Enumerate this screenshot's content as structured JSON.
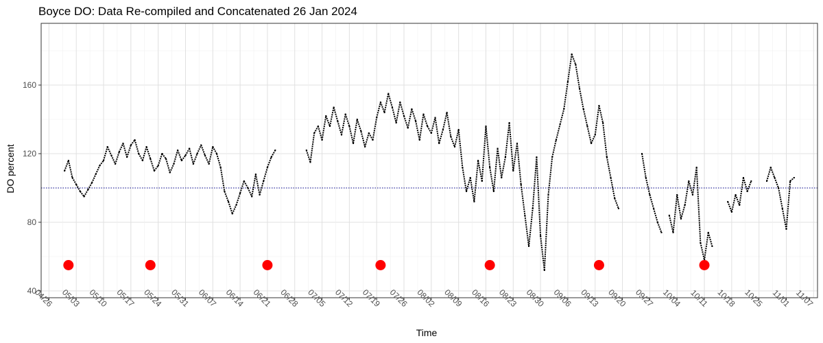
{
  "chart_data": {
    "type": "scatter",
    "title": "Boyce DO: Data Re-compiled and Concatenated 26 Jan 2024",
    "xlabel": "Time",
    "ylabel": "DO percent",
    "ylim": [
      36,
      196
    ],
    "y_ticks": [
      40,
      80,
      120,
      160
    ],
    "x_start": "2024-04-24",
    "x_end": "2024-11-09",
    "x_ticks": [
      {
        "date": "2024-04-26",
        "label": "04/26"
      },
      {
        "date": "2024-05-03",
        "label": "05/03"
      },
      {
        "date": "2024-05-10",
        "label": "05/10"
      },
      {
        "date": "2024-05-17",
        "label": "05/17"
      },
      {
        "date": "2024-05-24",
        "label": "05/24"
      },
      {
        "date": "2024-05-31",
        "label": "05/31"
      },
      {
        "date": "2024-06-07",
        "label": "06/07"
      },
      {
        "date": "2024-06-14",
        "label": "06/14"
      },
      {
        "date": "2024-06-21",
        "label": "06/21"
      },
      {
        "date": "2024-06-28",
        "label": "06/28"
      },
      {
        "date": "2024-07-05",
        "label": "07/05"
      },
      {
        "date": "2024-07-12",
        "label": "07/12"
      },
      {
        "date": "2024-07-19",
        "label": "07/19"
      },
      {
        "date": "2024-07-26",
        "label": "07/26"
      },
      {
        "date": "2024-08-02",
        "label": "08/02"
      },
      {
        "date": "2024-08-09",
        "label": "08/09"
      },
      {
        "date": "2024-08-16",
        "label": "08/16"
      },
      {
        "date": "2024-08-23",
        "label": "08/23"
      },
      {
        "date": "2024-08-30",
        "label": "08/30"
      },
      {
        "date": "2024-09-06",
        "label": "09/06"
      },
      {
        "date": "2024-09-13",
        "label": "09/13"
      },
      {
        "date": "2024-09-20",
        "label": "09/20"
      },
      {
        "date": "2024-09-27",
        "label": "09/27"
      },
      {
        "date": "2024-10-04",
        "label": "10/04"
      },
      {
        "date": "2024-10-11",
        "label": "10/11"
      },
      {
        "date": "2024-10-18",
        "label": "10/18"
      },
      {
        "date": "2024-10-25",
        "label": "10/25"
      },
      {
        "date": "2024-11-01",
        "label": "11/01"
      },
      {
        "date": "2024-11-07",
        "label": "11/07"
      }
    ],
    "reference_line": {
      "y": 100,
      "color": "#00008b",
      "style": "dotted"
    },
    "grid": true,
    "legend": "none",
    "series": [
      {
        "color": "#000000",
        "points": [
          [
            "2024-04-30",
            110
          ],
          [
            "2024-05-01",
            116
          ],
          [
            "2024-05-02",
            106
          ],
          [
            "2024-05-03",
            102
          ],
          [
            "2024-05-04",
            98
          ],
          [
            "2024-05-05",
            95
          ],
          [
            "2024-05-06",
            99
          ],
          [
            "2024-05-07",
            103
          ],
          [
            "2024-05-08",
            108
          ],
          [
            "2024-05-09",
            113
          ],
          [
            "2024-05-10",
            116
          ],
          [
            "2024-05-11",
            124
          ],
          [
            "2024-05-12",
            119
          ],
          [
            "2024-05-13",
            114
          ],
          [
            "2024-05-14",
            121
          ],
          [
            "2024-05-15",
            126
          ],
          [
            "2024-05-16",
            118
          ],
          [
            "2024-05-17",
            125
          ],
          [
            "2024-05-18",
            128
          ],
          [
            "2024-05-19",
            120
          ],
          [
            "2024-05-20",
            116
          ],
          [
            "2024-05-21",
            124
          ],
          [
            "2024-05-22",
            117
          ],
          [
            "2024-05-23",
            110
          ],
          [
            "2024-05-24",
            113
          ],
          [
            "2024-05-25",
            120
          ],
          [
            "2024-05-26",
            117
          ],
          [
            "2024-05-27",
            109
          ],
          [
            "2024-05-28",
            114
          ],
          [
            "2024-05-29",
            122
          ],
          [
            "2024-05-30",
            116
          ],
          [
            "2024-05-31",
            119
          ],
          [
            "2024-06-01",
            123
          ],
          [
            "2024-06-02",
            114
          ],
          [
            "2024-06-03",
            120
          ],
          [
            "2024-06-04",
            125
          ],
          [
            "2024-06-05",
            119
          ],
          [
            "2024-06-06",
            114
          ],
          [
            "2024-06-07",
            124
          ],
          [
            "2024-06-08",
            120
          ],
          [
            "2024-06-09",
            112
          ],
          [
            "2024-06-10",
            98
          ],
          [
            "2024-06-11",
            92
          ],
          [
            "2024-06-12",
            85
          ],
          [
            "2024-06-13",
            90
          ],
          [
            "2024-06-14",
            97
          ],
          [
            "2024-06-15",
            104
          ],
          [
            "2024-06-16",
            100
          ],
          [
            "2024-06-17",
            95
          ],
          [
            "2024-06-18",
            108
          ],
          [
            "2024-06-19",
            96
          ],
          [
            "2024-06-20",
            104
          ],
          [
            "2024-06-21",
            112
          ],
          [
            "2024-06-22",
            118
          ],
          [
            "2024-06-23",
            122
          ],
          [
            "2024-07-01",
            122
          ],
          [
            "2024-07-02",
            115
          ],
          [
            "2024-07-03",
            132
          ],
          [
            "2024-07-04",
            136
          ],
          [
            "2024-07-05",
            128
          ],
          [
            "2024-07-06",
            142
          ],
          [
            "2024-07-07",
            136
          ],
          [
            "2024-07-08",
            147
          ],
          [
            "2024-07-09",
            139
          ],
          [
            "2024-07-10",
            131
          ],
          [
            "2024-07-11",
            143
          ],
          [
            "2024-07-12",
            136
          ],
          [
            "2024-07-13",
            126
          ],
          [
            "2024-07-14",
            140
          ],
          [
            "2024-07-15",
            133
          ],
          [
            "2024-07-16",
            124
          ],
          [
            "2024-07-17",
            132
          ],
          [
            "2024-07-18",
            128
          ],
          [
            "2024-07-19",
            141
          ],
          [
            "2024-07-20",
            150
          ],
          [
            "2024-07-21",
            144
          ],
          [
            "2024-07-22",
            155
          ],
          [
            "2024-07-23",
            147
          ],
          [
            "2024-07-24",
            138
          ],
          [
            "2024-07-25",
            150
          ],
          [
            "2024-07-26",
            142
          ],
          [
            "2024-07-27",
            135
          ],
          [
            "2024-07-28",
            146
          ],
          [
            "2024-07-29",
            139
          ],
          [
            "2024-07-30",
            128
          ],
          [
            "2024-07-31",
            143
          ],
          [
            "2024-08-01",
            136
          ],
          [
            "2024-08-02",
            132
          ],
          [
            "2024-08-03",
            141
          ],
          [
            "2024-08-04",
            126
          ],
          [
            "2024-08-05",
            134
          ],
          [
            "2024-08-06",
            144
          ],
          [
            "2024-08-07",
            130
          ],
          [
            "2024-08-08",
            124
          ],
          [
            "2024-08-09",
            134
          ],
          [
            "2024-08-10",
            112
          ],
          [
            "2024-08-11",
            98
          ],
          [
            "2024-08-12",
            106
          ],
          [
            "2024-08-13",
            92
          ],
          [
            "2024-08-14",
            116
          ],
          [
            "2024-08-15",
            104
          ],
          [
            "2024-08-16",
            136
          ],
          [
            "2024-08-17",
            112
          ],
          [
            "2024-08-18",
            98
          ],
          [
            "2024-08-19",
            123
          ],
          [
            "2024-08-20",
            106
          ],
          [
            "2024-08-21",
            118
          ],
          [
            "2024-08-22",
            138
          ],
          [
            "2024-08-23",
            110
          ],
          [
            "2024-08-24",
            126
          ],
          [
            "2024-08-25",
            102
          ],
          [
            "2024-08-26",
            84
          ],
          [
            "2024-08-27",
            66
          ],
          [
            "2024-08-28",
            88
          ],
          [
            "2024-08-29",
            118
          ],
          [
            "2024-08-30",
            72
          ],
          [
            "2024-08-31",
            52
          ],
          [
            "2024-09-01",
            96
          ],
          [
            "2024-09-02",
            118
          ],
          [
            "2024-09-03",
            128
          ],
          [
            "2024-09-04",
            137
          ],
          [
            "2024-09-05",
            146
          ],
          [
            "2024-09-06",
            162
          ],
          [
            "2024-09-07",
            178
          ],
          [
            "2024-09-08",
            172
          ],
          [
            "2024-09-09",
            158
          ],
          [
            "2024-09-10",
            146
          ],
          [
            "2024-09-11",
            136
          ],
          [
            "2024-09-12",
            126
          ],
          [
            "2024-09-13",
            131
          ],
          [
            "2024-09-14",
            148
          ],
          [
            "2024-09-15",
            138
          ],
          [
            "2024-09-16",
            118
          ],
          [
            "2024-09-17",
            106
          ],
          [
            "2024-09-18",
            94
          ],
          [
            "2024-09-19",
            88
          ],
          [
            "2024-09-25",
            120
          ],
          [
            "2024-09-26",
            106
          ],
          [
            "2024-09-27",
            96
          ],
          [
            "2024-09-28",
            88
          ],
          [
            "2024-09-29",
            80
          ],
          [
            "2024-09-30",
            74
          ],
          [
            "2024-10-02",
            84
          ],
          [
            "2024-10-03",
            74
          ],
          [
            "2024-10-04",
            96
          ],
          [
            "2024-10-05",
            82
          ],
          [
            "2024-10-06",
            90
          ],
          [
            "2024-10-07",
            104
          ],
          [
            "2024-10-08",
            96
          ],
          [
            "2024-10-09",
            112
          ],
          [
            "2024-10-10",
            68
          ],
          [
            "2024-10-11",
            58
          ],
          [
            "2024-10-12",
            74
          ],
          [
            "2024-10-13",
            66
          ],
          [
            "2024-10-17",
            92
          ],
          [
            "2024-10-18",
            86
          ],
          [
            "2024-10-19",
            96
          ],
          [
            "2024-10-20",
            90
          ],
          [
            "2024-10-21",
            106
          ],
          [
            "2024-10-22",
            98
          ],
          [
            "2024-10-23",
            104
          ],
          [
            "2024-10-27",
            104
          ],
          [
            "2024-10-28",
            112
          ],
          [
            "2024-10-29",
            106
          ],
          [
            "2024-10-30",
            100
          ],
          [
            "2024-10-31",
            88
          ],
          [
            "2024-11-01",
            76
          ],
          [
            "2024-11-02",
            104
          ],
          [
            "2024-11-03",
            106
          ]
        ]
      },
      {
        "color": "#ff0000",
        "marker": "large-circle",
        "points": [
          [
            "2024-05-01",
            55
          ],
          [
            "2024-05-22",
            55
          ],
          [
            "2024-06-21",
            55
          ],
          [
            "2024-07-20",
            55
          ],
          [
            "2024-08-17",
            55
          ],
          [
            "2024-09-14",
            55
          ],
          [
            "2024-10-11",
            55
          ]
        ]
      }
    ]
  }
}
